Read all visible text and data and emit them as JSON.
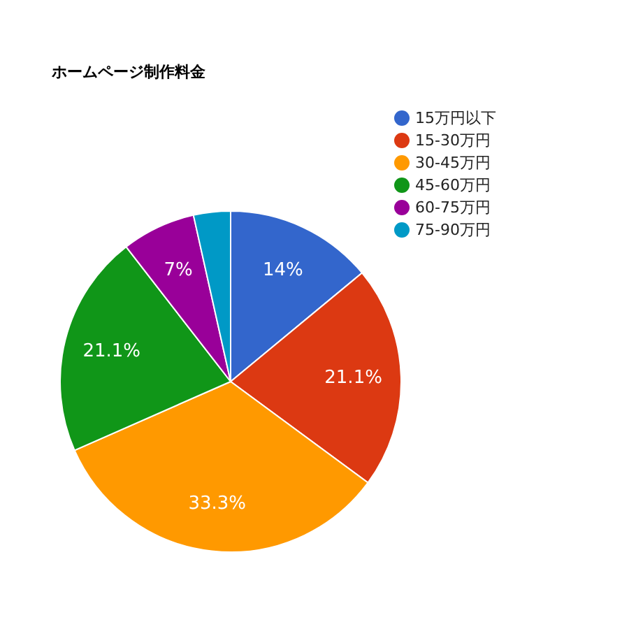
{
  "chart_data": {
    "type": "pie",
    "title": "ホームページ制作料金",
    "categories": [
      "15万円以下",
      "15-30万円",
      "30-45万円",
      "45-60万円",
      "60-75万円",
      "75-90万円"
    ],
    "values": [
      14,
      21.1,
      33.3,
      21.1,
      7,
      3.5
    ],
    "colors": [
      "#3366cc",
      "#dc3912",
      "#ff9900",
      "#109618",
      "#990099",
      "#0099c6"
    ],
    "value_labels": [
      "14%",
      "21.1%",
      "33.3%",
      "21.1%",
      "7%",
      null
    ],
    "legend": "top right"
  }
}
